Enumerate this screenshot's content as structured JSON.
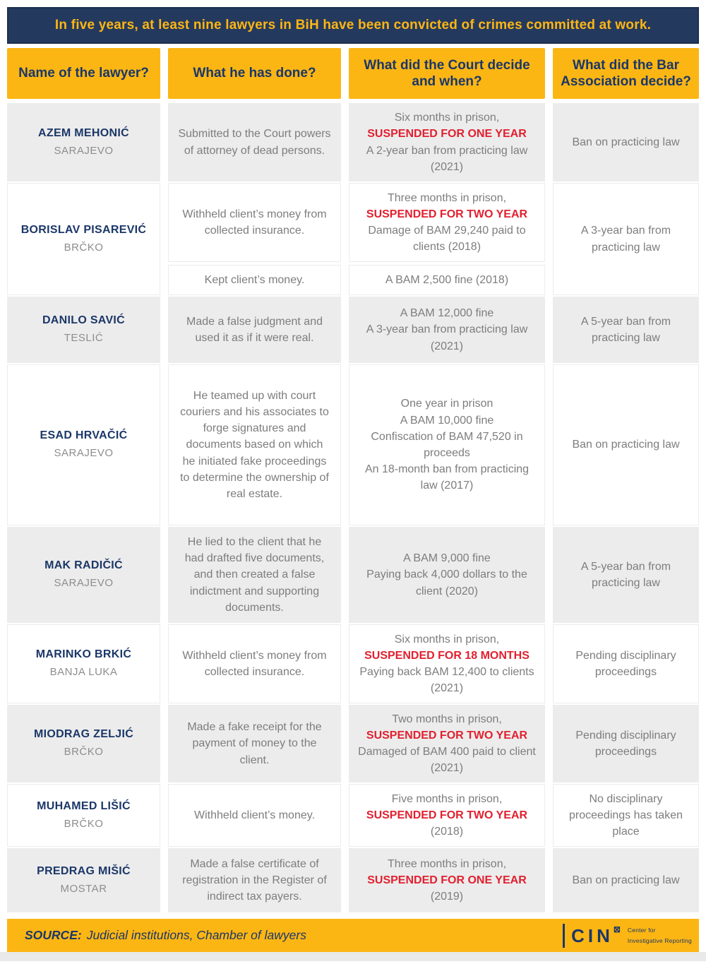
{
  "banner": {
    "title": "In five years, at least nine lawyers in BiH have been convicted of crimes committed at work."
  },
  "chart_data": {
    "type": "table",
    "title": "In five years, at least nine lawyers in BiH have been convicted of crimes committed at work.",
    "columns": [
      "Name of the lawyer?",
      "What he has done?",
      "What did the Court decide and when?",
      "What did the Bar Association decide?"
    ],
    "rows": [
      {
        "name": "AZEM MEHONIĆ",
        "city": "SARAJEVO",
        "entries": [
          {
            "done": "Submitted to the Court powers of attorney of dead persons.",
            "court": [
              {
                "text": "Six months in prison,",
                "red": false
              },
              {
                "text": "SUSPENDED FOR ONE YEAR",
                "red": true
              },
              {
                "text": "A 2-year ban from practicing law (2021)",
                "red": false
              }
            ]
          }
        ],
        "bar": "Ban on practicing law"
      },
      {
        "name": "BORISLAV PISAREVIĆ",
        "city": "BRČKO",
        "entries": [
          {
            "done": "Withheld client’s money from collected insurance.",
            "court": [
              {
                "text": "Three months in prison,",
                "red": false
              },
              {
                "text": "SUSPENDED FOR TWO YEAR",
                "red": true
              },
              {
                "text": "Damage of BAM 29,240 paid to clients (2018)",
                "red": false
              }
            ]
          },
          {
            "done": "Kept client’s money.",
            "court": [
              {
                "text": "A BAM 2,500 fine (2018)",
                "red": false
              }
            ]
          }
        ],
        "bar": "A 3-year ban from practicing law"
      },
      {
        "name": "DANILO SAVIĆ",
        "city": "TESLIĆ",
        "entries": [
          {
            "done": "Made a false judgment and used it as if it were real.",
            "court": [
              {
                "text": "A BAM 12,000 fine",
                "red": false
              },
              {
                "text": "A 3-year ban from practicing law (2021)",
                "red": false
              }
            ]
          }
        ],
        "bar": "A 5-year ban from practicing law"
      },
      {
        "name": "ESAD HRVAČIĆ",
        "city": "SARAJEVO",
        "entries": [
          {
            "done": "He teamed up with court couriers and his associates to forge signatures and documents based on which he initiated fake proceedings to determine the ownership of real estate.",
            "court": [
              {
                "text": "One year in prison",
                "red": false
              },
              {
                "text": "A BAM 10,000 fine",
                "red": false
              },
              {
                "text": "Confiscation of BAM 47,520 in proceeds",
                "red": false
              },
              {
                "text": "An 18-month ban from practicing law (2017)",
                "red": false
              }
            ]
          }
        ],
        "bar": "Ban on practicing law"
      },
      {
        "name": "MAK RADIČIĆ",
        "city": "SARAJEVO",
        "entries": [
          {
            "done": "He lied to the client that he had drafted five documents, and then created a false indictment and supporting documents.",
            "court": [
              {
                "text": "A BAM 9,000 fine",
                "red": false
              },
              {
                "text": "Paying back 4,000 dollars to the client (2020)",
                "red": false
              }
            ]
          }
        ],
        "bar": "A 5-year ban from practicing law"
      },
      {
        "name": "MARINKO BRKIĆ",
        "city": "BANJA LUKA",
        "entries": [
          {
            "done": "Withheld client’s money from collected insurance.",
            "court": [
              {
                "text": "Six months in prison,",
                "red": false
              },
              {
                "text": "SUSPENDED FOR 18 MONTHS",
                "red": true
              },
              {
                "text": "Paying back BAM 12,400 to clients (2021)",
                "red": false
              }
            ]
          }
        ],
        "bar": "Pending disciplinary proceedings"
      },
      {
        "name": "MIODRAG ZELJIĆ",
        "city": "BRČKO",
        "entries": [
          {
            "done": "Made a fake receipt for the payment of money to the client.",
            "court": [
              {
                "text": "Two months in prison,",
                "red": false
              },
              {
                "text": "SUSPENDED FOR TWO YEAR",
                "red": true
              },
              {
                "text": "Damaged of BAM 400 paid to client (2021)",
                "red": false
              }
            ]
          }
        ],
        "bar": "Pending disciplinary proceedings"
      },
      {
        "name": "MUHAMED LIŠIĆ",
        "city": "BRČKO",
        "entries": [
          {
            "done": "Withheld client’s money.",
            "court": [
              {
                "text": "Five months in prison,",
                "red": false
              },
              {
                "text": "SUSPENDED FOR TWO YEAR",
                "red": true
              },
              {
                "text": "(2018)",
                "red": false
              }
            ]
          }
        ],
        "bar": "No disciplinary proceedings has taken place"
      },
      {
        "name": "PREDRAG MIŠIĆ",
        "city": "MOSTAR",
        "entries": [
          {
            "done": "Made a false certificate of registration in the Register of indirect tax payers.",
            "court": [
              {
                "text": "Three months in prison,",
                "red": false
              },
              {
                "text": "SUSPENDED FOR ONE YEAR",
                "red": true
              },
              {
                "text": "(2019)",
                "red": false
              }
            ]
          }
        ],
        "bar": "Ban on practicing law"
      }
    ]
  },
  "footer": {
    "source_label": "SOURCE:",
    "source_text": "Judicial institutions, Chamber of lawyers",
    "logo": {
      "wordmark": "CIN",
      "mark": "⊠",
      "tagline_line1": "Center for",
      "tagline_line2": "Investigative Reporting"
    }
  },
  "colors": {
    "navy": "#24395e",
    "yellow": "#fcb614",
    "red": "#e1202f",
    "gray_cell": "#ececec",
    "body_text": "#7d7d7d",
    "header_text": "#1b3768"
  }
}
